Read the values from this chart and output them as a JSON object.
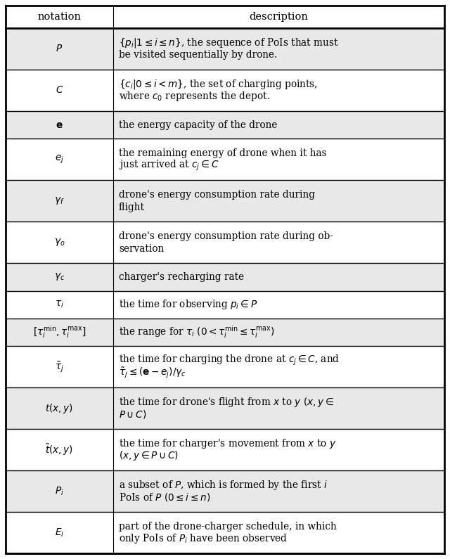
{
  "title_notation": "notation",
  "title_description": "description",
  "rows": [
    {
      "notation": "$P$",
      "description_lines": [
        "$\\{p_i|1 \\leq i \\leq n\\}$, the sequence of PoIs that must",
        "be visited sequentially by drone."
      ],
      "shaded": true
    },
    {
      "notation": "$C$",
      "description_lines": [
        "$\\{c_i|0 \\leq i < m\\}$, the set of charging points,",
        "where $c_0$ represents the depot."
      ],
      "shaded": false
    },
    {
      "notation": "$\\mathbf{e}$",
      "description_lines": [
        "the energy capacity of the drone"
      ],
      "shaded": true
    },
    {
      "notation": "$e_j$",
      "description_lines": [
        "the remaining energy of drone when it has",
        "just arrived at $c_j \\in C$"
      ],
      "shaded": false
    },
    {
      "notation": "$\\gamma_f$",
      "description_lines": [
        "drone's energy consumption rate during",
        "flight"
      ],
      "shaded": true
    },
    {
      "notation": "$\\gamma_o$",
      "description_lines": [
        "drone's energy consumption rate during ob-",
        "servation"
      ],
      "shaded": false
    },
    {
      "notation": "$\\gamma_c$",
      "description_lines": [
        "charger's recharging rate"
      ],
      "shaded": true
    },
    {
      "notation": "$\\tau_i$",
      "description_lines": [
        "the time for observing $p_i \\in P$"
      ],
      "shaded": false
    },
    {
      "notation": "$[\\tau_i^{\\min}, \\tau_i^{\\max}]$",
      "description_lines": [
        "the range for $\\tau_i$ $(0 < \\tau_i^{\\min} \\leq \\tau_i^{\\max})$"
      ],
      "shaded": true
    },
    {
      "notation": "$\\tilde{\\tau}_j$",
      "description_lines": [
        "the time for charging the drone at $c_j \\in C$, and",
        "$\\tilde{\\tau}_j \\leq (\\mathbf{e} - e_j)/\\gamma_c$"
      ],
      "shaded": false
    },
    {
      "notation": "$t(x,y)$",
      "description_lines": [
        "the time for drone's flight from $x$ to $y$ $(x, y \\in$",
        "$P \\cup C)$"
      ],
      "shaded": true
    },
    {
      "notation": "$\\tilde{t}(x,y)$",
      "description_lines": [
        "the time for charger's movement from $x$ to $y$",
        "$(x, y \\in P \\cup C)$"
      ],
      "shaded": false
    },
    {
      "notation": "$P_i$",
      "description_lines": [
        "a subset of $P$, which is formed by the first $i$",
        "PoIs of $P$ $(0 \\leq i \\leq n)$"
      ],
      "shaded": true
    },
    {
      "notation": "$E_i$",
      "description_lines": [
        "part of the drone-charger schedule, in which",
        "only PoIs of $P_i$ have been observed"
      ],
      "shaded": false
    }
  ],
  "bg_color": "#ffffff",
  "shaded_color": "#e8e8e8",
  "border_color": "#000000",
  "text_color": "#000000",
  "col_split": 0.245,
  "fontsize": 9.8,
  "header_fontsize": 10.5
}
